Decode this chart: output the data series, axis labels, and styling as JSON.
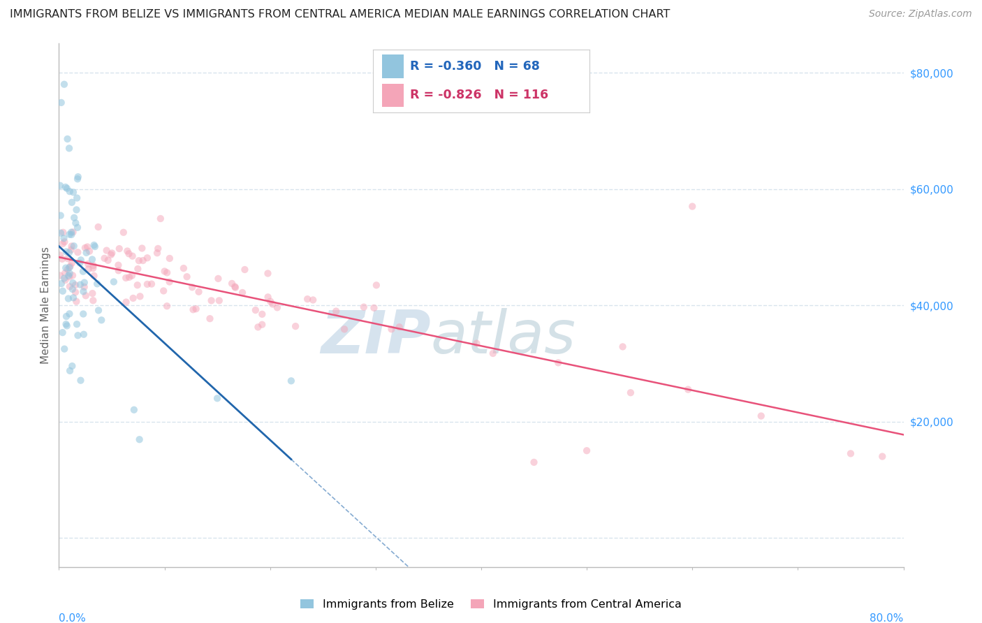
{
  "title": "IMMIGRANTS FROM BELIZE VS IMMIGRANTS FROM CENTRAL AMERICA MEDIAN MALE EARNINGS CORRELATION CHART",
  "source": "Source: ZipAtlas.com",
  "ylabel": "Median Male Earnings",
  "r_belize": -0.36,
  "n_belize": 68,
  "r_ca": -0.826,
  "n_ca": 116,
  "color_belize": "#92c5de",
  "color_belize_line": "#2166ac",
  "color_ca": "#f4a5b8",
  "color_ca_line": "#e8527a",
  "color_watermark_zip": "#c5d8e8",
  "color_watermark_atlas": "#b8cdd8",
  "legend_label_belize": "Immigrants from Belize",
  "legend_label_ca": "Immigrants from Central America",
  "xlim": [
    0.0,
    0.8
  ],
  "ylim": [
    -5000,
    85000
  ],
  "yticks": [
    0,
    20000,
    40000,
    60000,
    80000
  ],
  "ytick_labels": [
    "",
    "$20,000",
    "$40,000",
    "$60,000",
    "$80,000"
  ],
  "background_color": "#ffffff",
  "grid_color": "#d8e4ed",
  "title_color": "#222222",
  "axis_color": "#bbbbbb",
  "label_color": "#666666",
  "tick_label_color": "#3399ff",
  "watermark_text": "ZIPatlas",
  "marker_size": 55,
  "alpha_belize": 0.55,
  "alpha_ca": 0.5
}
